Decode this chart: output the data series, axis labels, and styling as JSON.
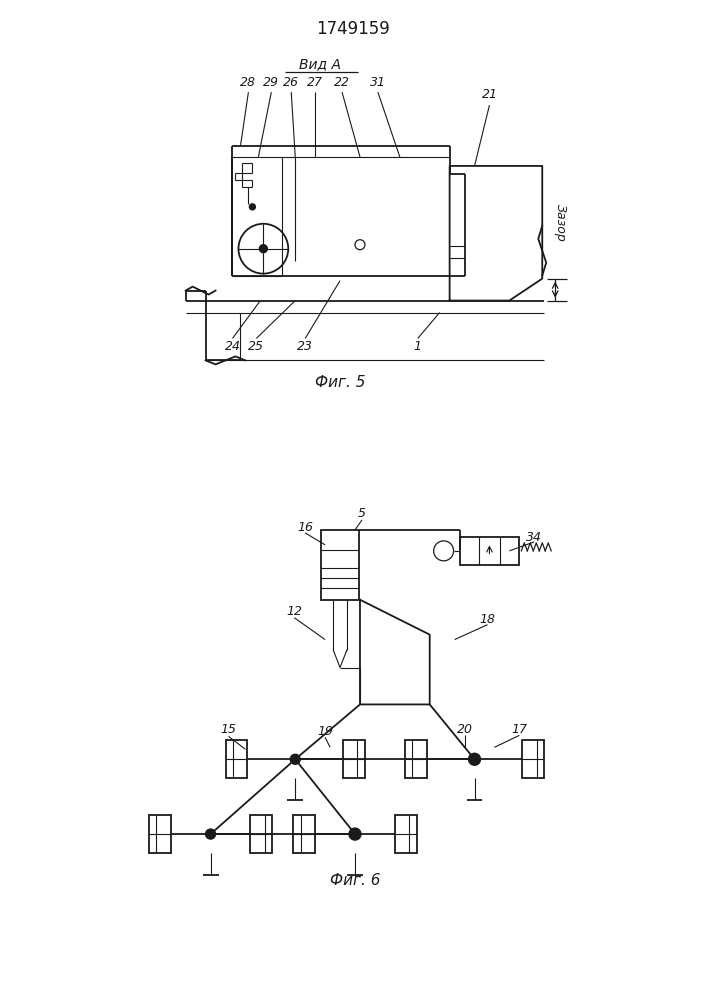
{
  "title": "1749159",
  "fig5_label": "Фиг. 5",
  "fig6_label": "Фиг. 6",
  "vida_label": "Вид А",
  "zazor_label": "Зазор",
  "bg_color": "#ffffff",
  "line_color": "#1a1a1a"
}
